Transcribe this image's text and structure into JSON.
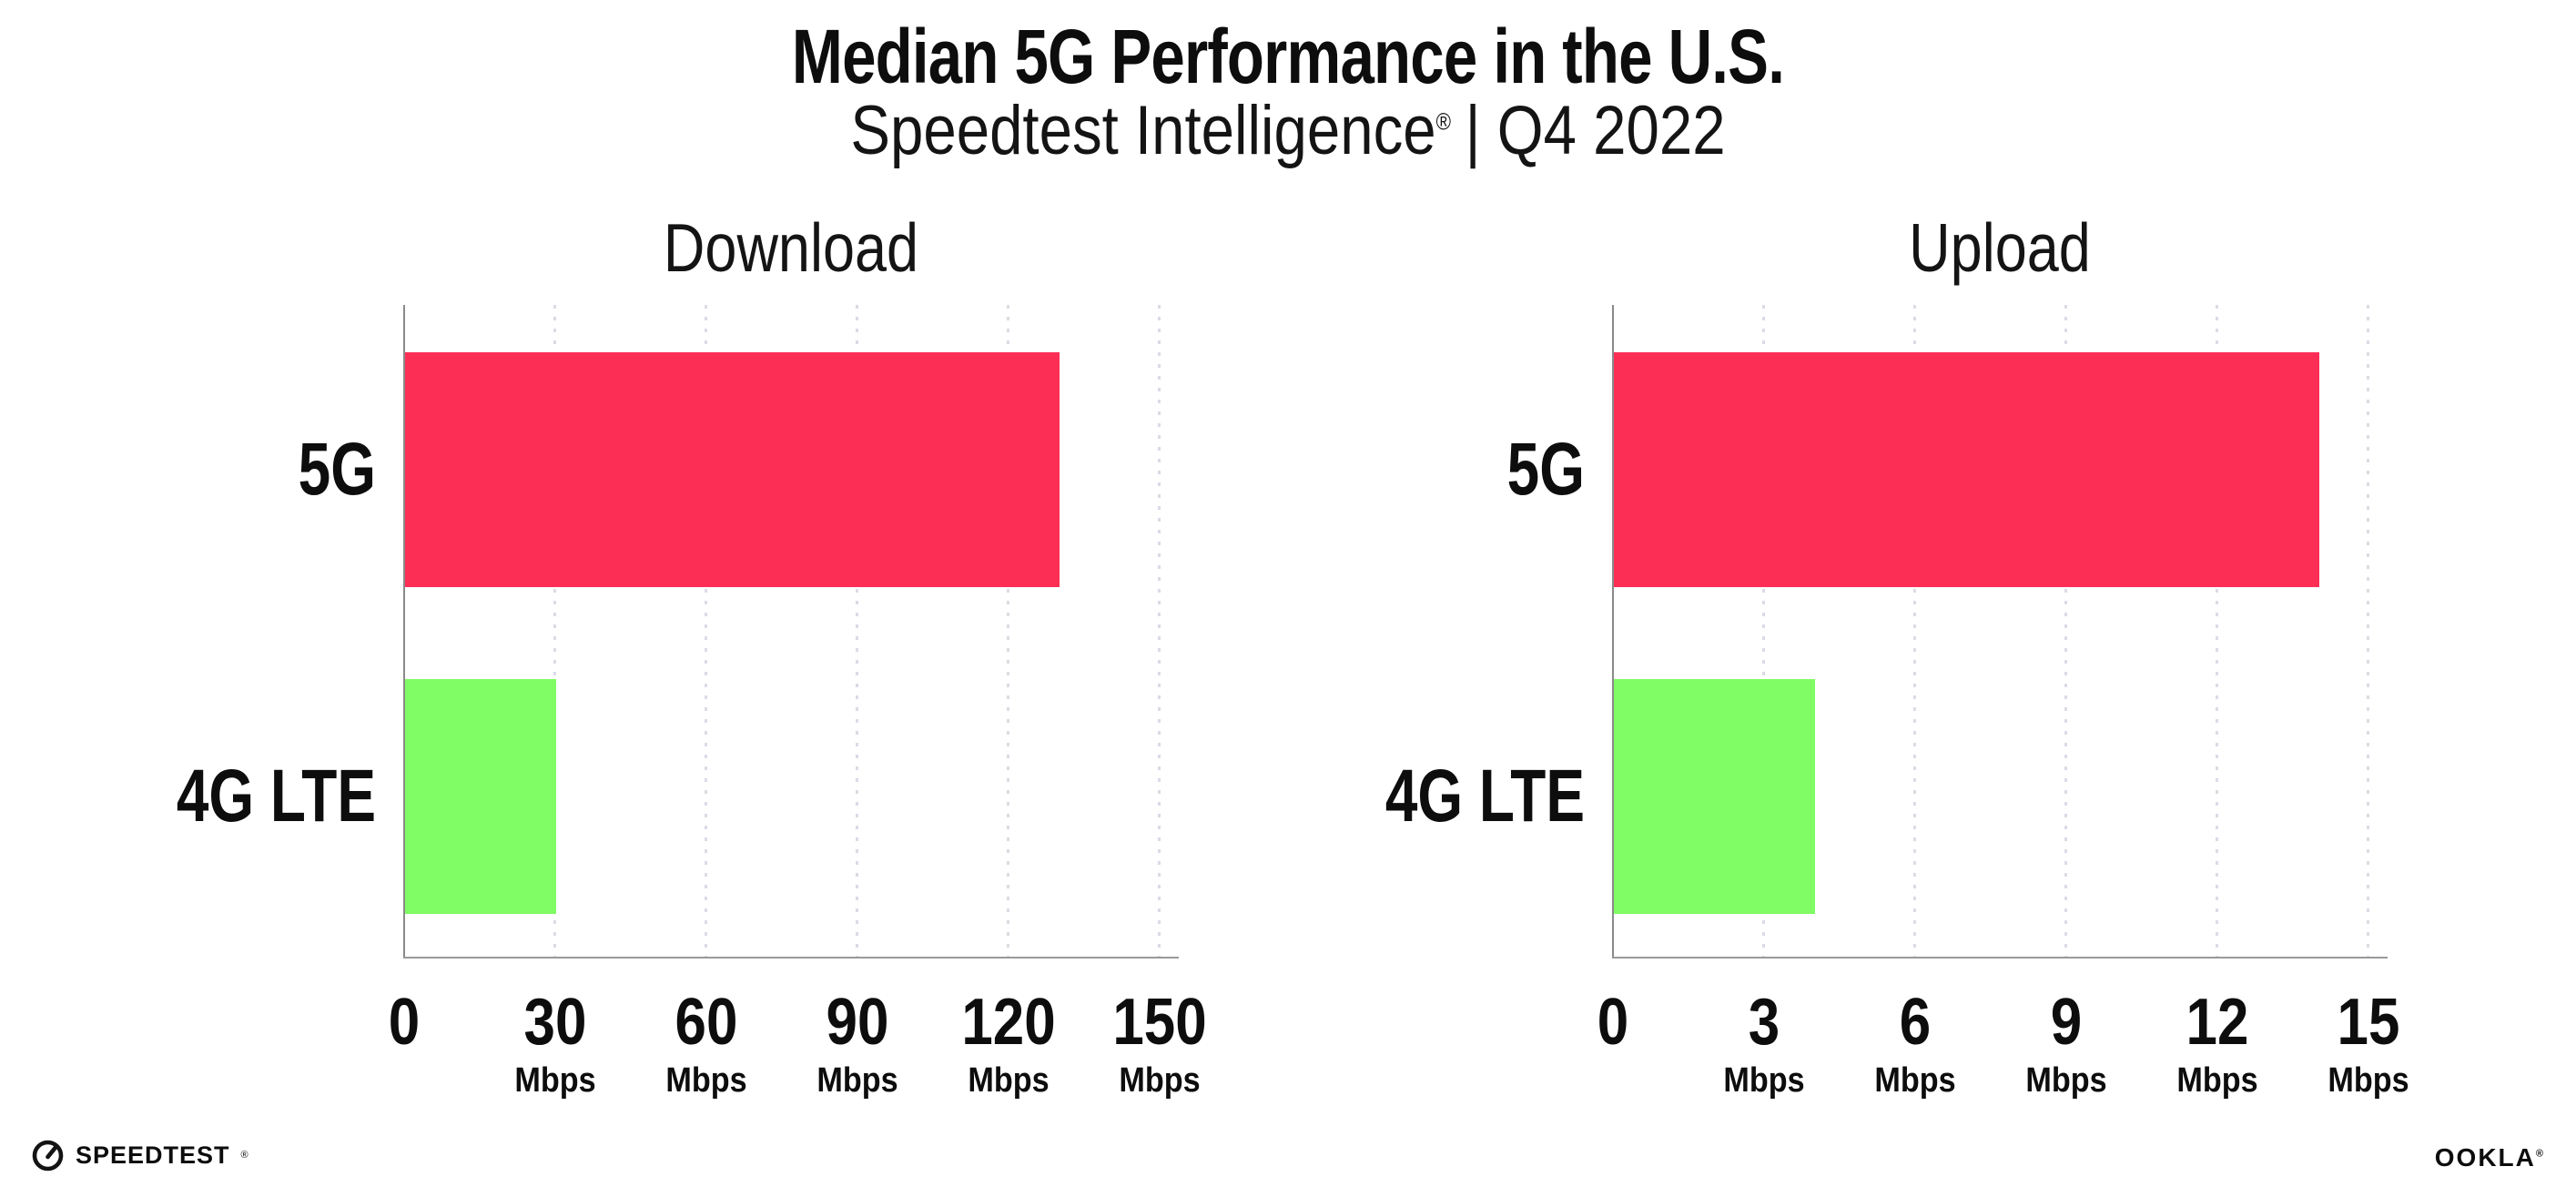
{
  "header": {
    "title": "Median 5G Performance in the U.S.",
    "subtitle_brand": "Speedtest Intelligence",
    "subtitle_reg": "®",
    "subtitle_rest": "| Q4 2022"
  },
  "chart_data": [
    {
      "type": "bar",
      "orientation": "horizontal",
      "title": "Download",
      "categories": [
        "5G",
        "4G LTE"
      ],
      "values": [
        130,
        30
      ],
      "unit": "Mbps",
      "xticks": [
        0,
        30,
        60,
        90,
        120,
        150
      ],
      "xlim": [
        0,
        154
      ],
      "grid": "vertical-dotted",
      "legend": "none"
    },
    {
      "type": "bar",
      "orientation": "horizontal",
      "title": "Upload",
      "categories": [
        "5G",
        "4G LTE"
      ],
      "values": [
        14,
        4
      ],
      "unit": "Mbps",
      "xticks": [
        0,
        3,
        6,
        9,
        12,
        15
      ],
      "xlim": [
        0,
        15.4
      ],
      "grid": "vertical-dotted",
      "legend": "none"
    }
  ],
  "colors": {
    "bar_5g": "#FD2E56",
    "bar_4g_lte": "#80FC64",
    "grid": "#DBDBE6",
    "axis": "#9A9A9A",
    "text": "#0D0D0D"
  },
  "footer": {
    "speedtest_label": "SPEEDTEST",
    "speedtest_reg": "®",
    "ookla_label": "OOKLA",
    "ookla_reg": "®"
  }
}
